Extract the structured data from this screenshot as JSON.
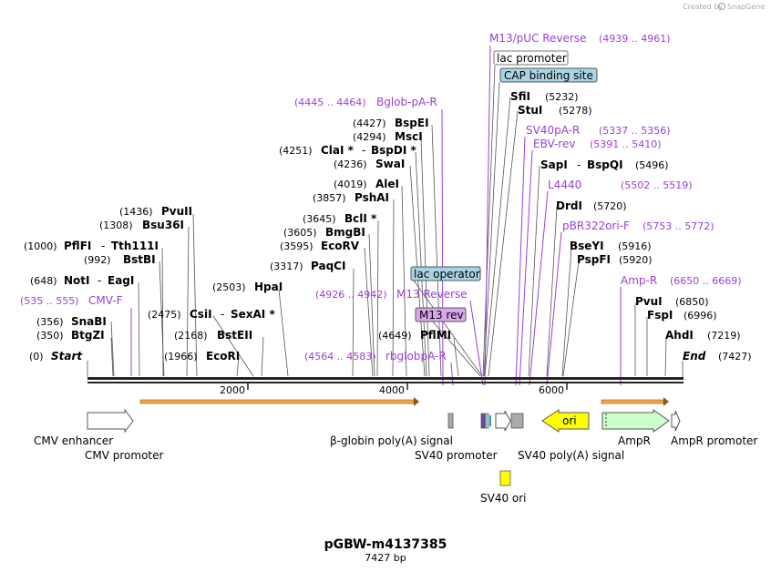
{
  "credit": {
    "prefix": "Created by",
    "brand": "SnapGene"
  },
  "title": "pGBW-m4137385",
  "length_label": "7427 bp",
  "ticks": [
    "2000",
    "4000",
    "6000"
  ],
  "start_label": "Start",
  "start_pos": "(0)",
  "end_label": "End",
  "end_pos": "(7427)",
  "sites": [
    {
      "name": "SnaBI",
      "pos": "(356)"
    },
    {
      "name": "BtgZI",
      "pos": "(350)"
    },
    {
      "name": "NotI",
      "extra": "EagI",
      "pos": "(648)"
    },
    {
      "name": "PflFI",
      "extra": "Tth111I",
      "pos": "(1000)"
    },
    {
      "name": "BstBI",
      "pos": "(992)"
    },
    {
      "name": "Bsu36I",
      "pos": "(1308)"
    },
    {
      "name": "PvuII",
      "pos": "(1436)"
    },
    {
      "name": "EcoRI",
      "pos": "(1966)"
    },
    {
      "name": "CsiI",
      "extra": "SexAI *",
      "pos": "(2475)"
    },
    {
      "name": "BstEII",
      "pos": "(2168)"
    },
    {
      "name": "HpaI",
      "pos": "(2503)"
    },
    {
      "name": "PaqCI",
      "pos": "(3317)"
    },
    {
      "name": "EcoRV",
      "pos": "(3595)"
    },
    {
      "name": "BmgBI",
      "pos": "(3605)"
    },
    {
      "name": "BclI *",
      "pos": "(3645)"
    },
    {
      "name": "PshAI",
      "pos": "(3857)"
    },
    {
      "name": "AleI",
      "pos": "(4019)"
    },
    {
      "name": "SwaI",
      "pos": "(4236)"
    },
    {
      "name": "ClaI *",
      "extra": "BspDI *",
      "pos": "(4251)"
    },
    {
      "name": "MscI",
      "pos": "(4294)"
    },
    {
      "name": "BspEI",
      "pos": "(4427)"
    },
    {
      "name": "PflMI",
      "pos": "(4649)"
    },
    {
      "name": "SfiI",
      "pos": "(5232)"
    },
    {
      "name": "StuI",
      "pos": "(5278)"
    },
    {
      "name": "SapI",
      "extra": "BspQI",
      "pos": "(5496)"
    },
    {
      "name": "DrdI",
      "pos": "(5720)"
    },
    {
      "name": "BseYI",
      "pos": "(5916)"
    },
    {
      "name": "PspFI",
      "pos": "(5920)"
    },
    {
      "name": "PvuI",
      "pos": "(6850)"
    },
    {
      "name": "FspI",
      "pos": "(6996)"
    },
    {
      "name": "AhdI",
      "pos": "(7219)"
    }
  ],
  "primers": [
    {
      "name": "CMV-F",
      "pos": "(535 .. 555)"
    },
    {
      "name": "Bglob-pA-R",
      "pos": "(4445 .. 4464)"
    },
    {
      "name": "M13 Reverse",
      "pos": "(4926 .. 4942)"
    },
    {
      "name": "rbglobpA-R",
      "pos": "(4564 .. 4583)"
    },
    {
      "name": "M13/pUC Reverse",
      "pos": "(4939 .. 4961)"
    },
    {
      "name": "SV40pA-R",
      "pos": "(5337 .. 5356)"
    },
    {
      "name": "EBV-rev",
      "pos": "(5391 .. 5410)"
    },
    {
      "name": "L4440",
      "pos": "(5502 .. 5519)"
    },
    {
      "name": "pBR322ori-F",
      "pos": "(5753 .. 5772)"
    },
    {
      "name": "Amp-R",
      "pos": "(6650 .. 6669)"
    }
  ],
  "boxed": {
    "lac_promoter": "lac promoter",
    "cap_site": "CAP binding site",
    "lac_operator": "lac operator",
    "m13_rev": "M13 rev"
  },
  "features": {
    "cmv_enhancer": "CMV enhancer",
    "cmv_promoter": "CMV promoter",
    "bglobin": "β-globin poly(A) signal",
    "sv40_promoter": "SV40 promoter",
    "sv40_polya": "SV40 poly(A) signal",
    "sv40_ori": "SV40 ori",
    "ori": "ori",
    "ampr": "AmpR",
    "ampr_promoter": "AmpR promoter"
  },
  "colors": {
    "backbone": "#222222",
    "primer": "#9b3fd6",
    "orf": "#f5a54a",
    "ori": "#ffff00",
    "ampr": "#ccffcc",
    "grey_feature": "#aaaaaa",
    "lac_box": "#a8d4e4",
    "m13_box": "#d9a6ec"
  }
}
